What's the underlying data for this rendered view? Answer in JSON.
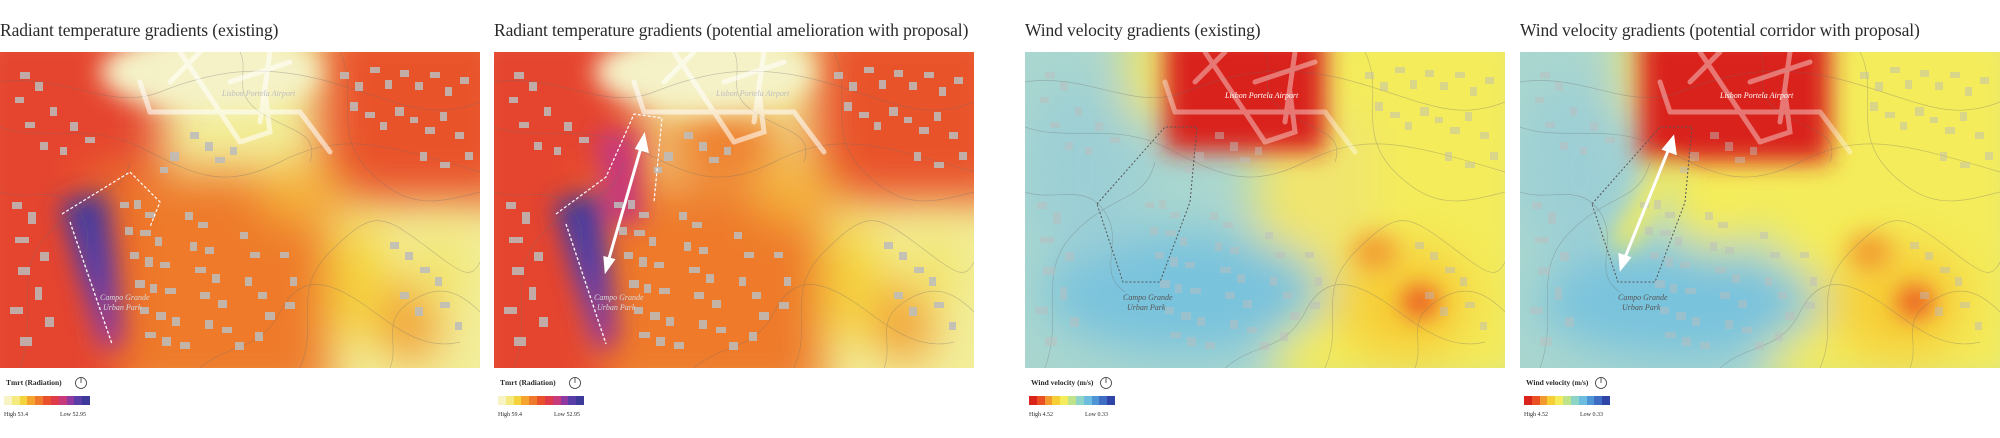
{
  "panels": [
    {
      "title": "Radiant temperature gradients (existing)",
      "airport": "Lisbon Portela Airport",
      "park": [
        "Campo Grande",
        "Urban Park"
      ],
      "legend": {
        "title": "Tmrt (Radiation)",
        "high": "High 53.4",
        "low": "Low 52.95",
        "colors": [
          "#f7f3c4",
          "#f5ea80",
          "#f5d33c",
          "#f4a42f",
          "#ef7a2b",
          "#e9502c",
          "#df3a4a",
          "#c6397a",
          "#8f3aa1",
          "#5a3ea8",
          "#3d3a99"
        ]
      }
    },
    {
      "title": "Radiant temperature gradients (potential amelioration with proposal)",
      "airport": "Lisbon Portela Airport",
      "park": [
        "Campo Grande",
        "Urban Park"
      ],
      "legend": {
        "title": "Tmrt (Radiation)",
        "high": "High 59.4",
        "low": "Low 52.95",
        "colors": [
          "#f7f3c4",
          "#f5ea80",
          "#f5d33c",
          "#f4a42f",
          "#ef7a2b",
          "#e9502c",
          "#df3a4a",
          "#c6397a",
          "#8f3aa1",
          "#5a3ea8",
          "#3d3a99"
        ]
      }
    },
    {
      "title": "Wind velocity gradients (existing)",
      "airport": "Lisbon Portela Airport",
      "park": [
        "Campo Grande",
        "Urban Park"
      ],
      "legend": {
        "title": "Wind velocity (m/s)",
        "high": "High 4.52",
        "low": "Low 0.33",
        "colors": [
          "#d9241c",
          "#ea5024",
          "#f29a2e",
          "#f6cf37",
          "#f4ec5a",
          "#bfe38a",
          "#8fd5c7",
          "#6dbde0",
          "#4f95d6",
          "#3f6dc4",
          "#2f46a8"
        ]
      }
    },
    {
      "title": "Wind velocity gradients (potential corridor with proposal)",
      "airport": "Lisbon Portela Airport",
      "park": [
        "Campo Grande",
        "Urban Park"
      ],
      "legend": {
        "title": "Wind velocity (m/s)",
        "high": "High 4.52",
        "low": "Low 0.33",
        "colors": [
          "#d9241c",
          "#ea5024",
          "#f29a2e",
          "#f6cf37",
          "#f4ec5a",
          "#bfe38a",
          "#8fd5c7",
          "#6dbde0",
          "#4f95d6",
          "#3f6dc4",
          "#2f46a8"
        ]
      }
    }
  ]
}
